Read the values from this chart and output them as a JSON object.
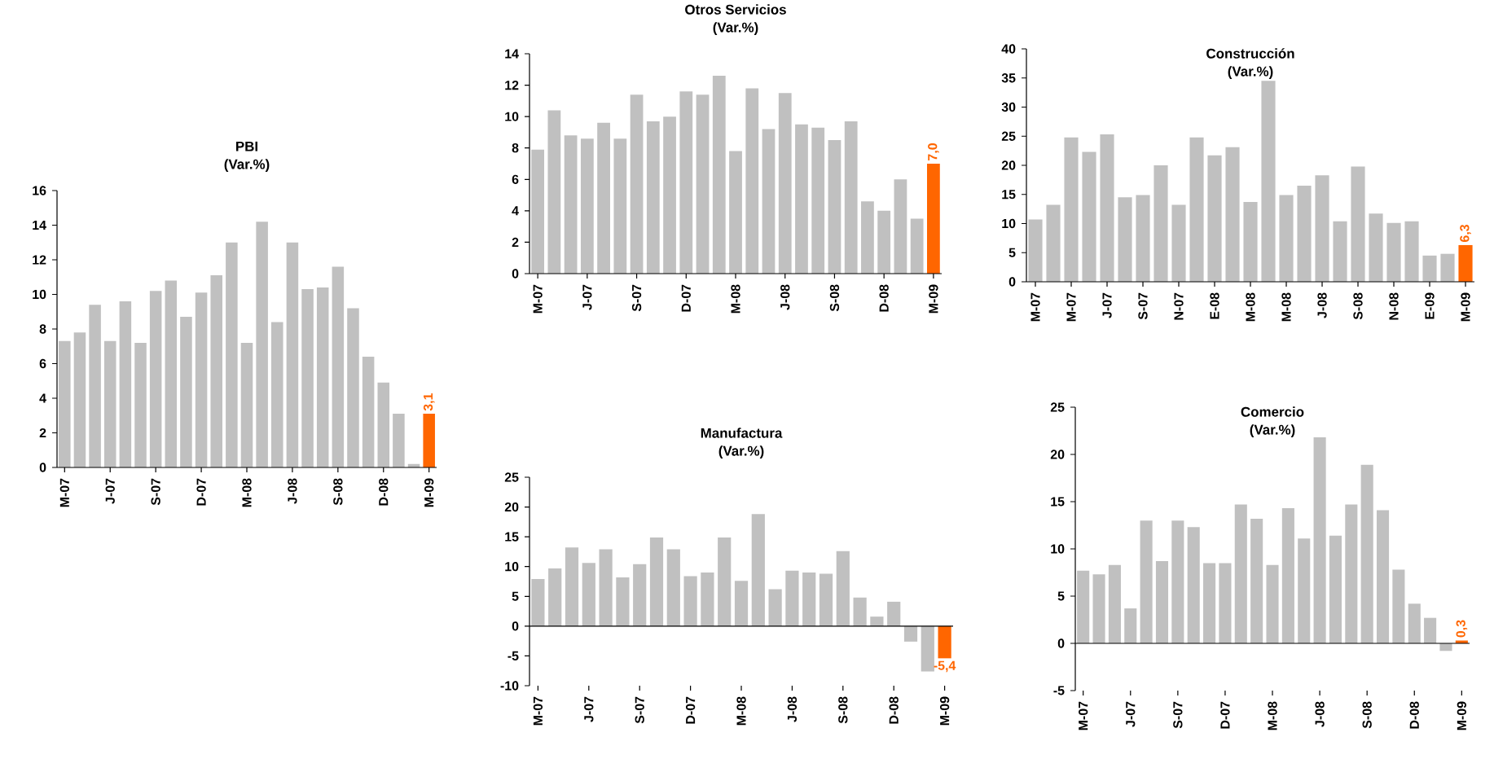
{
  "chart_data": [
    {
      "type": "bar",
      "title": "PBI",
      "subtitle": "(Var.%)",
      "categories": [
        "M-07",
        null,
        null,
        "J-07",
        null,
        null,
        "S-07",
        null,
        null,
        "D-07",
        null,
        null,
        "M-08",
        null,
        null,
        "J-08",
        null,
        null,
        "S-08",
        null,
        null,
        "D-08",
        null,
        null,
        "M-09"
      ],
      "values": [
        7.3,
        7.8,
        9.4,
        7.3,
        9.6,
        7.2,
        10.2,
        10.8,
        8.7,
        10.1,
        11.1,
        13.0,
        7.2,
        14.2,
        8.4,
        13.0,
        10.3,
        10.4,
        11.6,
        9.2,
        6.4,
        4.9,
        3.1,
        0.2,
        3.1
      ],
      "colors": [
        "#c0c0c0",
        "#c0c0c0",
        "#c0c0c0",
        "#c0c0c0",
        "#c0c0c0",
        "#c0c0c0",
        "#c0c0c0",
        "#c0c0c0",
        "#c0c0c0",
        "#c0c0c0",
        "#c0c0c0",
        "#c0c0c0",
        "#c0c0c0",
        "#c0c0c0",
        "#c0c0c0",
        "#c0c0c0",
        "#c0c0c0",
        "#c0c0c0",
        "#c0c0c0",
        "#c0c0c0",
        "#c0c0c0",
        "#c0c0c0",
        "#c0c0c0",
        "#c0c0c0",
        "#ff6600"
      ],
      "value_labels": [
        null,
        null,
        null,
        null,
        null,
        null,
        null,
        null,
        null,
        null,
        null,
        null,
        null,
        null,
        null,
        null,
        null,
        null,
        null,
        null,
        null,
        null,
        null,
        null,
        "3,1"
      ],
      "ylim": [
        0,
        16
      ],
      "yticks": [
        0,
        2,
        4,
        6,
        8,
        10,
        12,
        14,
        16
      ]
    },
    {
      "type": "bar",
      "title": "Otros Servicios",
      "subtitle": "(Var.%)",
      "categories": [
        "M-07",
        null,
        null,
        "J-07",
        null,
        null,
        "S-07",
        null,
        null,
        "D-07",
        null,
        null,
        "M-08",
        null,
        null,
        "J-08",
        null,
        null,
        "S-08",
        null,
        null,
        "D-08",
        null,
        null,
        "M-09"
      ],
      "values": [
        7.9,
        10.4,
        8.8,
        8.6,
        9.6,
        8.6,
        11.4,
        9.7,
        10.0,
        11.6,
        11.4,
        12.6,
        7.8,
        11.8,
        9.2,
        11.5,
        9.5,
        9.3,
        8.5,
        9.7,
        4.6,
        4.0,
        6.0,
        3.5,
        7.0
      ],
      "colors": [
        "#c0c0c0",
        "#c0c0c0",
        "#c0c0c0",
        "#c0c0c0",
        "#c0c0c0",
        "#c0c0c0",
        "#c0c0c0",
        "#c0c0c0",
        "#c0c0c0",
        "#c0c0c0",
        "#c0c0c0",
        "#c0c0c0",
        "#c0c0c0",
        "#c0c0c0",
        "#c0c0c0",
        "#c0c0c0",
        "#c0c0c0",
        "#c0c0c0",
        "#c0c0c0",
        "#c0c0c0",
        "#c0c0c0",
        "#c0c0c0",
        "#c0c0c0",
        "#c0c0c0",
        "#ff6600"
      ],
      "value_labels": [
        null,
        null,
        null,
        null,
        null,
        null,
        null,
        null,
        null,
        null,
        null,
        null,
        null,
        null,
        null,
        null,
        null,
        null,
        null,
        null,
        null,
        null,
        null,
        null,
        "7,0"
      ],
      "ylim": [
        0,
        14
      ],
      "yticks": [
        0,
        2,
        4,
        6,
        8,
        10,
        12,
        14
      ]
    },
    {
      "type": "bar",
      "title": "Construcción",
      "subtitle": "(Var.%)",
      "categories": [
        "M-07",
        null,
        "M-07",
        null,
        "J-07",
        null,
        "S-07",
        null,
        "N-07",
        null,
        "E-08",
        null,
        "M-08",
        null,
        "M-08",
        null,
        "J-08",
        null,
        "S-08",
        null,
        "N-08",
        null,
        "E-09",
        null,
        "M-09"
      ],
      "values": [
        10.7,
        13.2,
        24.8,
        22.3,
        25.3,
        14.5,
        14.9,
        20.0,
        13.2,
        24.8,
        21.7,
        23.1,
        13.7,
        34.5,
        14.9,
        16.5,
        18.3,
        10.4,
        19.8,
        11.7,
        10.1,
        10.4,
        4.5,
        4.8,
        6.3
      ],
      "colors": [
        "#c0c0c0",
        "#c0c0c0",
        "#c0c0c0",
        "#c0c0c0",
        "#c0c0c0",
        "#c0c0c0",
        "#c0c0c0",
        "#c0c0c0",
        "#c0c0c0",
        "#c0c0c0",
        "#c0c0c0",
        "#c0c0c0",
        "#c0c0c0",
        "#c0c0c0",
        "#c0c0c0",
        "#c0c0c0",
        "#c0c0c0",
        "#c0c0c0",
        "#c0c0c0",
        "#c0c0c0",
        "#c0c0c0",
        "#c0c0c0",
        "#c0c0c0",
        "#c0c0c0",
        "#ff6600"
      ],
      "value_labels": [
        null,
        null,
        null,
        null,
        null,
        null,
        null,
        null,
        null,
        null,
        null,
        null,
        null,
        null,
        null,
        null,
        null,
        null,
        null,
        null,
        null,
        null,
        null,
        null,
        "6,3"
      ],
      "ylim": [
        0,
        40
      ],
      "yticks": [
        0,
        5,
        10,
        15,
        20,
        25,
        30,
        35,
        40
      ]
    },
    {
      "type": "bar",
      "title": "Manufactura",
      "subtitle": "(Var.%)",
      "categories": [
        "M-07",
        null,
        null,
        "J-07",
        null,
        null,
        "S-07",
        null,
        null,
        "D-07",
        null,
        null,
        "M-08",
        null,
        null,
        "J-08",
        null,
        null,
        "S-08",
        null,
        null,
        "D-08",
        null,
        null,
        "M-09"
      ],
      "values": [
        7.9,
        9.7,
        13.2,
        10.6,
        12.9,
        8.2,
        10.4,
        14.9,
        12.9,
        8.4,
        9.0,
        14.9,
        7.6,
        18.8,
        6.2,
        9.3,
        9.0,
        8.8,
        12.6,
        4.8,
        1.6,
        4.1,
        -2.6,
        -7.6,
        -5.4
      ],
      "colors": [
        "#c0c0c0",
        "#c0c0c0",
        "#c0c0c0",
        "#c0c0c0",
        "#c0c0c0",
        "#c0c0c0",
        "#c0c0c0",
        "#c0c0c0",
        "#c0c0c0",
        "#c0c0c0",
        "#c0c0c0",
        "#c0c0c0",
        "#c0c0c0",
        "#c0c0c0",
        "#c0c0c0",
        "#c0c0c0",
        "#c0c0c0",
        "#c0c0c0",
        "#c0c0c0",
        "#c0c0c0",
        "#c0c0c0",
        "#c0c0c0",
        "#c0c0c0",
        "#c0c0c0",
        "#ff6600"
      ],
      "value_labels": [
        null,
        null,
        null,
        null,
        null,
        null,
        null,
        null,
        null,
        null,
        null,
        null,
        null,
        null,
        null,
        null,
        null,
        null,
        null,
        null,
        null,
        null,
        null,
        null,
        "-5,4"
      ],
      "ylim": [
        -10,
        25
      ],
      "yticks": [
        -10,
        -5,
        0,
        5,
        10,
        15,
        20,
        25
      ]
    },
    {
      "type": "bar",
      "title": "Comercio",
      "subtitle": "(Var.%)",
      "categories": [
        "M-07",
        null,
        null,
        "J-07",
        null,
        null,
        "S-07",
        null,
        null,
        "D-07",
        null,
        null,
        "M-08",
        null,
        null,
        "J-08",
        null,
        null,
        "S-08",
        null,
        null,
        "D-08",
        null,
        null,
        "M-09"
      ],
      "values": [
        7.7,
        7.3,
        8.3,
        3.7,
        13.0,
        8.7,
        13.0,
        12.3,
        8.5,
        8.5,
        14.7,
        13.2,
        8.3,
        14.3,
        11.1,
        21.8,
        11.4,
        14.7,
        18.9,
        14.1,
        7.8,
        4.2,
        2.7,
        -0.8,
        0.3
      ],
      "colors": [
        "#c0c0c0",
        "#c0c0c0",
        "#c0c0c0",
        "#c0c0c0",
        "#c0c0c0",
        "#c0c0c0",
        "#c0c0c0",
        "#c0c0c0",
        "#c0c0c0",
        "#c0c0c0",
        "#c0c0c0",
        "#c0c0c0",
        "#c0c0c0",
        "#c0c0c0",
        "#c0c0c0",
        "#c0c0c0",
        "#c0c0c0",
        "#c0c0c0",
        "#c0c0c0",
        "#c0c0c0",
        "#c0c0c0",
        "#c0c0c0",
        "#c0c0c0",
        "#c0c0c0",
        "#ff6600"
      ],
      "value_labels": [
        null,
        null,
        null,
        null,
        null,
        null,
        null,
        null,
        null,
        null,
        null,
        null,
        null,
        null,
        null,
        null,
        null,
        null,
        null,
        null,
        null,
        null,
        null,
        null,
        "0,3"
      ],
      "ylim": [
        -5,
        25
      ],
      "yticks": [
        -5,
        0,
        5,
        10,
        15,
        20,
        25
      ]
    }
  ]
}
